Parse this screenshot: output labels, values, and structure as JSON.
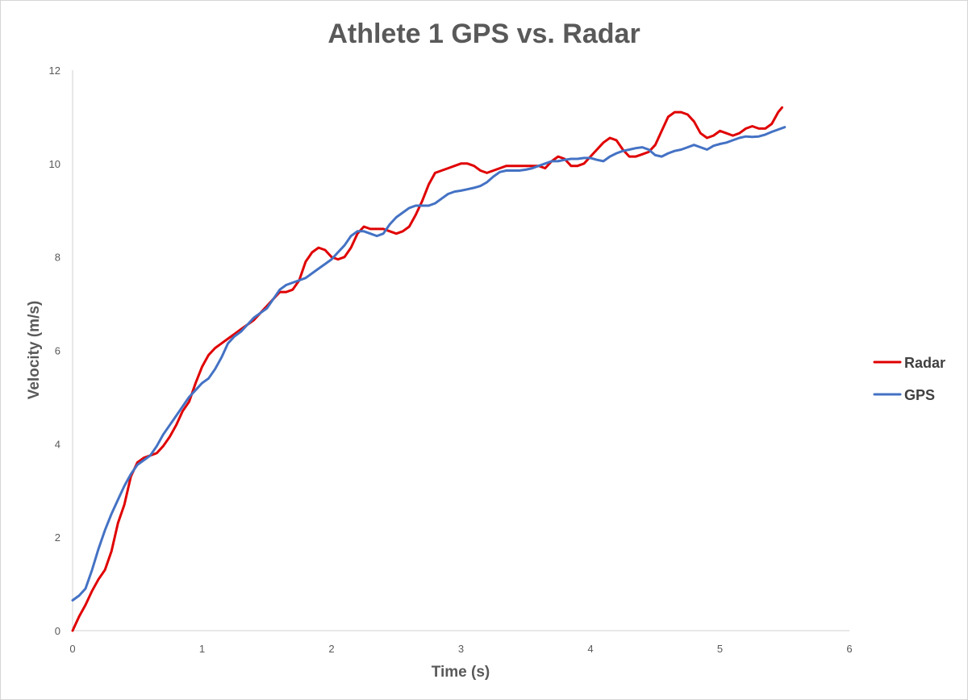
{
  "chart_data": {
    "type": "line",
    "title": "Athlete 1 GPS vs. Radar",
    "xlabel": "Time (s)",
    "ylabel": "Velocity (m/s)",
    "xlim": [
      0,
      6
    ],
    "ylim": [
      0,
      12
    ],
    "x_ticks": [
      0,
      1,
      2,
      3,
      4,
      5,
      6
    ],
    "y_ticks": [
      0,
      2,
      4,
      6,
      8,
      10,
      12
    ],
    "grid": false,
    "legend_position": "right",
    "series": [
      {
        "name": "Radar",
        "color": "#e00000",
        "points": [
          [
            0.0,
            0.0
          ],
          [
            0.05,
            0.3
          ],
          [
            0.1,
            0.55
          ],
          [
            0.15,
            0.85
          ],
          [
            0.2,
            1.1
          ],
          [
            0.25,
            1.3
          ],
          [
            0.3,
            1.7
          ],
          [
            0.35,
            2.3
          ],
          [
            0.4,
            2.7
          ],
          [
            0.45,
            3.3
          ],
          [
            0.5,
            3.6
          ],
          [
            0.55,
            3.7
          ],
          [
            0.6,
            3.75
          ],
          [
            0.65,
            3.8
          ],
          [
            0.7,
            3.95
          ],
          [
            0.75,
            4.15
          ],
          [
            0.8,
            4.4
          ],
          [
            0.85,
            4.7
          ],
          [
            0.9,
            4.9
          ],
          [
            0.95,
            5.3
          ],
          [
            1.0,
            5.65
          ],
          [
            1.05,
            5.9
          ],
          [
            1.1,
            6.05
          ],
          [
            1.15,
            6.15
          ],
          [
            1.2,
            6.25
          ],
          [
            1.25,
            6.35
          ],
          [
            1.3,
            6.45
          ],
          [
            1.35,
            6.55
          ],
          [
            1.4,
            6.65
          ],
          [
            1.45,
            6.8
          ],
          [
            1.5,
            6.95
          ],
          [
            1.55,
            7.1
          ],
          [
            1.6,
            7.25
          ],
          [
            1.65,
            7.25
          ],
          [
            1.7,
            7.3
          ],
          [
            1.75,
            7.5
          ],
          [
            1.8,
            7.9
          ],
          [
            1.85,
            8.1
          ],
          [
            1.9,
            8.2
          ],
          [
            1.95,
            8.15
          ],
          [
            2.0,
            8.0
          ],
          [
            2.05,
            7.95
          ],
          [
            2.1,
            8.0
          ],
          [
            2.15,
            8.2
          ],
          [
            2.2,
            8.5
          ],
          [
            2.25,
            8.65
          ],
          [
            2.3,
            8.6
          ],
          [
            2.35,
            8.6
          ],
          [
            2.4,
            8.6
          ],
          [
            2.45,
            8.55
          ],
          [
            2.5,
            8.5
          ],
          [
            2.55,
            8.55
          ],
          [
            2.6,
            8.65
          ],
          [
            2.65,
            8.9
          ],
          [
            2.7,
            9.2
          ],
          [
            2.75,
            9.55
          ],
          [
            2.8,
            9.8
          ],
          [
            2.85,
            9.85
          ],
          [
            2.9,
            9.9
          ],
          [
            2.95,
            9.95
          ],
          [
            3.0,
            10.0
          ],
          [
            3.05,
            10.0
          ],
          [
            3.1,
            9.95
          ],
          [
            3.15,
            9.85
          ],
          [
            3.2,
            9.8
          ],
          [
            3.25,
            9.85
          ],
          [
            3.3,
            9.9
          ],
          [
            3.35,
            9.95
          ],
          [
            3.4,
            9.95
          ],
          [
            3.45,
            9.95
          ],
          [
            3.5,
            9.95
          ],
          [
            3.55,
            9.95
          ],
          [
            3.6,
            9.95
          ],
          [
            3.65,
            9.9
          ],
          [
            3.7,
            10.05
          ],
          [
            3.75,
            10.15
          ],
          [
            3.8,
            10.1
          ],
          [
            3.85,
            9.95
          ],
          [
            3.9,
            9.95
          ],
          [
            3.95,
            10.0
          ],
          [
            4.0,
            10.15
          ],
          [
            4.05,
            10.3
          ],
          [
            4.1,
            10.45
          ],
          [
            4.15,
            10.55
          ],
          [
            4.2,
            10.5
          ],
          [
            4.25,
            10.3
          ],
          [
            4.3,
            10.15
          ],
          [
            4.35,
            10.15
          ],
          [
            4.4,
            10.2
          ],
          [
            4.45,
            10.25
          ],
          [
            4.5,
            10.4
          ],
          [
            4.55,
            10.7
          ],
          [
            4.6,
            11.0
          ],
          [
            4.65,
            11.1
          ],
          [
            4.7,
            11.1
          ],
          [
            4.75,
            11.05
          ],
          [
            4.8,
            10.9
          ],
          [
            4.85,
            10.65
          ],
          [
            4.9,
            10.55
          ],
          [
            4.95,
            10.6
          ],
          [
            5.0,
            10.7
          ],
          [
            5.05,
            10.65
          ],
          [
            5.1,
            10.6
          ],
          [
            5.15,
            10.65
          ],
          [
            5.2,
            10.75
          ],
          [
            5.25,
            10.8
          ],
          [
            5.3,
            10.75
          ],
          [
            5.35,
            10.75
          ],
          [
            5.4,
            10.85
          ],
          [
            5.45,
            11.1
          ],
          [
            5.48,
            11.2
          ]
        ]
      },
      {
        "name": "GPS",
        "color": "#4472c4",
        "points": [
          [
            0.0,
            0.65
          ],
          [
            0.05,
            0.75
          ],
          [
            0.1,
            0.9
          ],
          [
            0.15,
            1.3
          ],
          [
            0.2,
            1.75
          ],
          [
            0.25,
            2.15
          ],
          [
            0.3,
            2.5
          ],
          [
            0.35,
            2.8
          ],
          [
            0.4,
            3.1
          ],
          [
            0.45,
            3.35
          ],
          [
            0.5,
            3.55
          ],
          [
            0.55,
            3.65
          ],
          [
            0.6,
            3.75
          ],
          [
            0.65,
            3.95
          ],
          [
            0.7,
            4.2
          ],
          [
            0.75,
            4.4
          ],
          [
            0.8,
            4.6
          ],
          [
            0.85,
            4.8
          ],
          [
            0.9,
            5.0
          ],
          [
            0.95,
            5.15
          ],
          [
            1.0,
            5.3
          ],
          [
            1.05,
            5.4
          ],
          [
            1.1,
            5.6
          ],
          [
            1.15,
            5.85
          ],
          [
            1.2,
            6.15
          ],
          [
            1.25,
            6.3
          ],
          [
            1.3,
            6.4
          ],
          [
            1.35,
            6.55
          ],
          [
            1.4,
            6.7
          ],
          [
            1.45,
            6.8
          ],
          [
            1.5,
            6.9
          ],
          [
            1.55,
            7.1
          ],
          [
            1.6,
            7.3
          ],
          [
            1.65,
            7.4
          ],
          [
            1.7,
            7.45
          ],
          [
            1.75,
            7.5
          ],
          [
            1.8,
            7.55
          ],
          [
            1.85,
            7.65
          ],
          [
            1.9,
            7.75
          ],
          [
            1.95,
            7.85
          ],
          [
            2.0,
            7.95
          ],
          [
            2.05,
            8.1
          ],
          [
            2.1,
            8.25
          ],
          [
            2.15,
            8.45
          ],
          [
            2.2,
            8.55
          ],
          [
            2.25,
            8.55
          ],
          [
            2.3,
            8.5
          ],
          [
            2.35,
            8.45
          ],
          [
            2.4,
            8.5
          ],
          [
            2.45,
            8.7
          ],
          [
            2.5,
            8.85
          ],
          [
            2.55,
            8.95
          ],
          [
            2.6,
            9.05
          ],
          [
            2.65,
            9.1
          ],
          [
            2.7,
            9.1
          ],
          [
            2.75,
            9.1
          ],
          [
            2.8,
            9.15
          ],
          [
            2.85,
            9.25
          ],
          [
            2.9,
            9.35
          ],
          [
            2.95,
            9.4
          ],
          [
            3.0,
            9.42
          ],
          [
            3.05,
            9.45
          ],
          [
            3.1,
            9.48
          ],
          [
            3.15,
            9.52
          ],
          [
            3.2,
            9.6
          ],
          [
            3.25,
            9.72
          ],
          [
            3.3,
            9.82
          ],
          [
            3.35,
            9.85
          ],
          [
            3.4,
            9.85
          ],
          [
            3.45,
            9.85
          ],
          [
            3.5,
            9.87
          ],
          [
            3.55,
            9.9
          ],
          [
            3.6,
            9.95
          ],
          [
            3.65,
            10.0
          ],
          [
            3.7,
            10.05
          ],
          [
            3.75,
            10.05
          ],
          [
            3.8,
            10.08
          ],
          [
            3.85,
            10.1
          ],
          [
            3.9,
            10.1
          ],
          [
            3.95,
            10.12
          ],
          [
            4.0,
            10.12
          ],
          [
            4.05,
            10.08
          ],
          [
            4.1,
            10.05
          ],
          [
            4.15,
            10.15
          ],
          [
            4.2,
            10.22
          ],
          [
            4.25,
            10.27
          ],
          [
            4.3,
            10.3
          ],
          [
            4.35,
            10.33
          ],
          [
            4.4,
            10.35
          ],
          [
            4.45,
            10.3
          ],
          [
            4.5,
            10.18
          ],
          [
            4.55,
            10.15
          ],
          [
            4.6,
            10.22
          ],
          [
            4.65,
            10.27
          ],
          [
            4.7,
            10.3
          ],
          [
            4.75,
            10.35
          ],
          [
            4.8,
            10.4
          ],
          [
            4.85,
            10.35
          ],
          [
            4.9,
            10.3
          ],
          [
            4.95,
            10.38
          ],
          [
            5.0,
            10.42
          ],
          [
            5.05,
            10.45
          ],
          [
            5.1,
            10.5
          ],
          [
            5.15,
            10.55
          ],
          [
            5.2,
            10.58
          ],
          [
            5.25,
            10.57
          ],
          [
            5.3,
            10.58
          ],
          [
            5.35,
            10.62
          ],
          [
            5.4,
            10.68
          ],
          [
            5.45,
            10.73
          ],
          [
            5.5,
            10.78
          ]
        ]
      }
    ]
  }
}
